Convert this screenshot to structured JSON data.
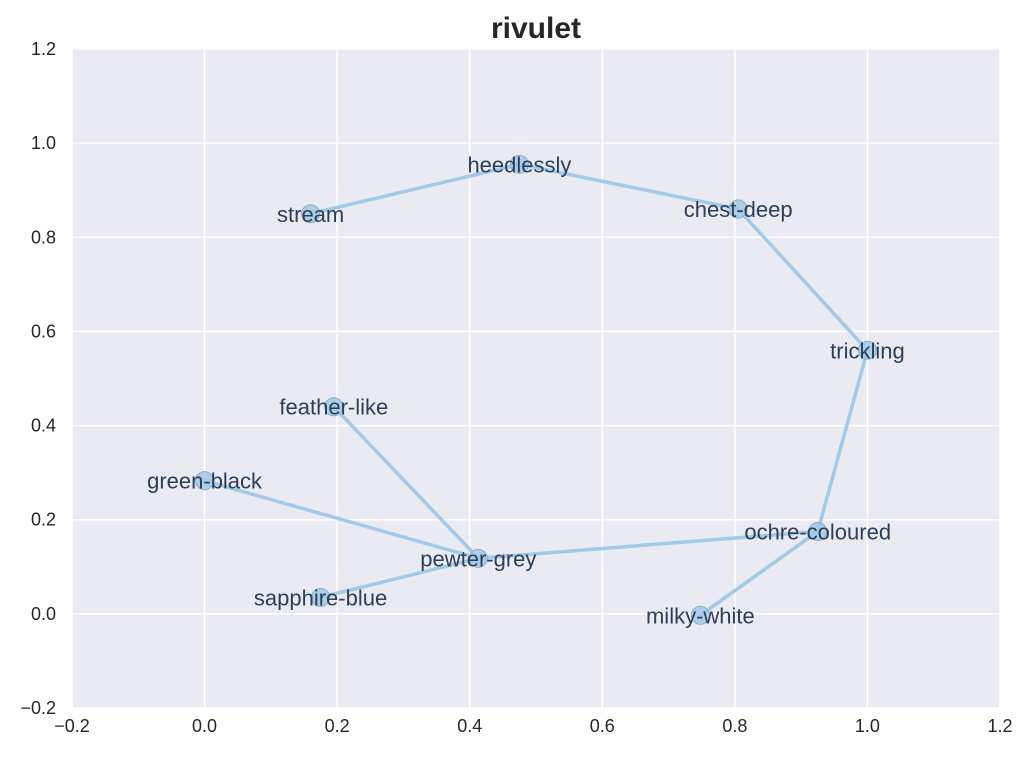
{
  "chart_data": {
    "type": "scatter",
    "title": "rivulet",
    "xlabel": "",
    "ylabel": "",
    "xlim": [
      -0.2,
      1.2
    ],
    "ylim": [
      -0.2,
      1.2
    ],
    "grid": true,
    "x_ticks": [
      "−0.2",
      "0.0",
      "0.2",
      "0.4",
      "0.6",
      "0.8",
      "1.0",
      "1.2"
    ],
    "y_ticks": [
      "−0.2",
      "0.0",
      "0.2",
      "0.4",
      "0.6",
      "0.8",
      "1.0",
      "1.2"
    ],
    "points": [
      {
        "label": "stream",
        "x": 0.16,
        "y": 0.85
      },
      {
        "label": "heedlessly",
        "x": 0.475,
        "y": 0.955
      },
      {
        "label": "chest-deep",
        "x": 0.805,
        "y": 0.86
      },
      {
        "label": "trickling",
        "x": 1.0,
        "y": 0.56
      },
      {
        "label": "ochre-coloured",
        "x": 0.925,
        "y": 0.175
      },
      {
        "label": "milky-white",
        "x": 0.748,
        "y": -0.003
      },
      {
        "label": "feather-like",
        "x": 0.195,
        "y": 0.44
      },
      {
        "label": "green-black",
        "x": 0.0,
        "y": 0.283
      },
      {
        "label": "pewter-grey",
        "x": 0.413,
        "y": 0.118
      },
      {
        "label": "sapphire-blue",
        "x": 0.175,
        "y": 0.035
      }
    ],
    "edges": [
      [
        "stream",
        "heedlessly"
      ],
      [
        "heedlessly",
        "chest-deep"
      ],
      [
        "chest-deep",
        "trickling"
      ],
      [
        "trickling",
        "ochre-coloured"
      ],
      [
        "ochre-coloured",
        "milky-white"
      ],
      [
        "ochre-coloured",
        "pewter-grey"
      ],
      [
        "pewter-grey",
        "feather-like"
      ],
      [
        "pewter-grey",
        "green-black"
      ],
      [
        "pewter-grey",
        "sapphire-blue"
      ]
    ],
    "colors": {
      "plot_background": "#eaeaf2",
      "grid": "#ffffff",
      "line": "#a1c9e8",
      "marker": "#a1c9e8",
      "marker_edge": "#8aaecb",
      "text": "#2c3e58"
    }
  }
}
